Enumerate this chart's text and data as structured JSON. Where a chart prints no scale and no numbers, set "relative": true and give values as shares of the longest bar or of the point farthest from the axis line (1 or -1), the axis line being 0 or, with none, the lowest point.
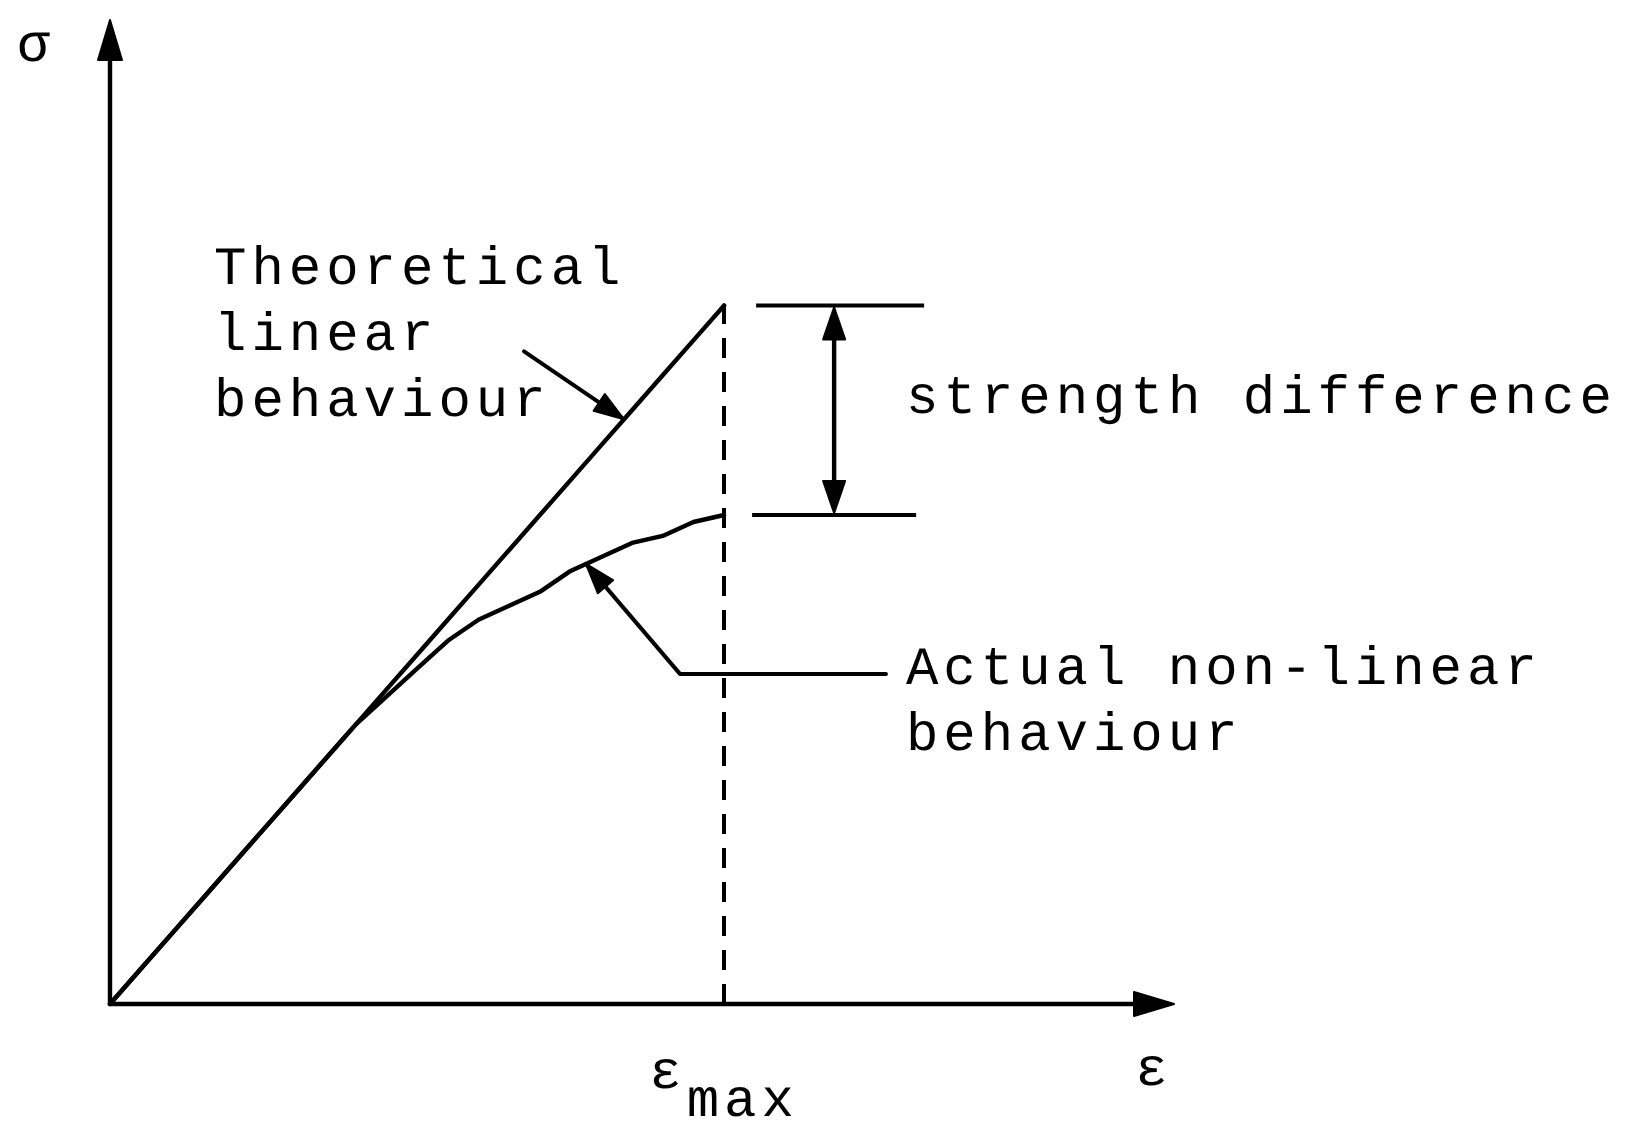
{
  "chart_data": {
    "type": "line",
    "relative": true,
    "xlabel": "ε",
    "ylabel": "σ",
    "categories": [
      null,
      null,
      null,
      null,
      null,
      null,
      null,
      null,
      null,
      null,
      null,
      null,
      null,
      null,
      null,
      null,
      null,
      null,
      null,
      null,
      null,
      null,
      null,
      null,
      null,
      null,
      null,
      null,
      null,
      null,
      null,
      null,
      null,
      null,
      null
    ],
    "series": [
      {
        "name": "Theoretical linear behaviour",
        "color": "#000000",
        "values": [
          0,
          0.05,
          0.1,
          0.15,
          0.2,
          0.25,
          0.3,
          0.35,
          0.4,
          0.45,
          0.5,
          0.55,
          0.6,
          0.65,
          0.7,
          0.75,
          0.8,
          0.85,
          0.9,
          0.95,
          1,
          null,
          null,
          null,
          null,
          null,
          null,
          null,
          null,
          null,
          null,
          null,
          null,
          null,
          null
        ]
      },
      {
        "name": "Actual non-linear behaviour",
        "color": "#000000",
        "values": [
          0,
          0.05,
          0.1,
          0.15,
          0.2,
          0.25,
          0.3,
          0.35,
          0.4,
          0.44,
          0.48,
          0.52,
          0.55,
          0.57,
          0.59,
          0.62,
          0.64,
          0.66,
          0.67,
          0.69,
          0.7,
          null,
          null,
          null,
          null,
          null,
          null,
          null,
          null,
          null,
          null,
          null,
          null,
          null,
          null
        ]
      }
    ],
    "ref_lines": [
      {
        "axis": "x",
        "label": "ε$_{max}$",
        "color": "#000000",
        "line_style": "dashed"
      }
    ],
    "annotations": [
      "strength difference"
    ],
    "marker": "none",
    "line_style": "solid"
  }
}
